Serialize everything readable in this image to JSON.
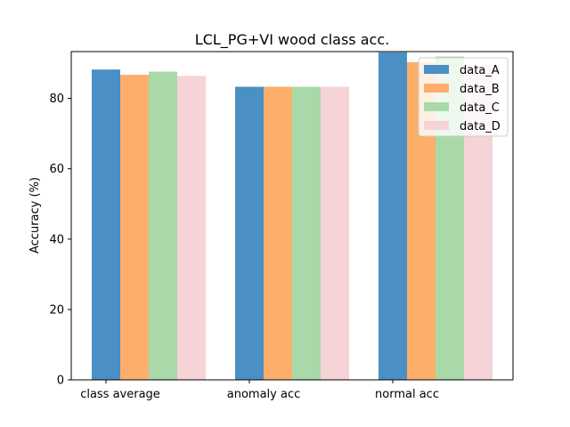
{
  "chart_data": {
    "type": "bar",
    "title": "LCL_PG+VI wood class acc.",
    "xlabel": "",
    "ylabel": "Accuracy (%)",
    "ylim": [
      0,
      93.3
    ],
    "yticks": [
      0,
      20,
      40,
      60,
      80
    ],
    "categories": [
      "class average",
      "anomaly acc",
      "normal acc"
    ],
    "series": [
      {
        "name": "data_A",
        "color": "#4a90c4",
        "values": [
          88.2,
          83.3,
          93.1
        ]
      },
      {
        "name": "data_B",
        "color": "#fdae6b",
        "values": [
          86.7,
          83.3,
          90.3
        ]
      },
      {
        "name": "data_C",
        "color": "#a9d9a9",
        "values": [
          87.6,
          83.3,
          91.9
        ]
      },
      {
        "name": "data_D",
        "color": "#f5d3d6",
        "values": [
          86.4,
          83.3,
          89.4
        ]
      }
    ],
    "legend_position": "top-right",
    "grid": false
  }
}
